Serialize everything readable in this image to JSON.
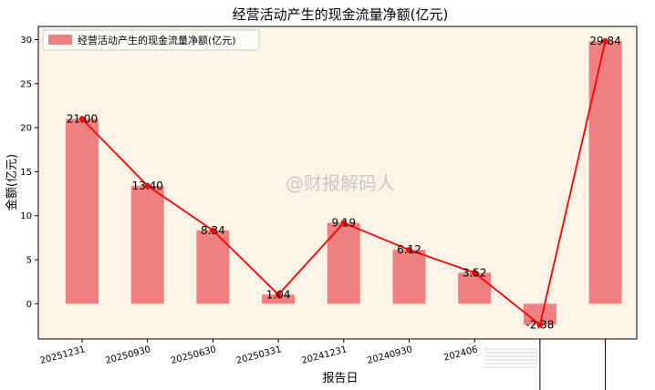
{
  "chart_data": {
    "type": "bar",
    "title": "经营活动产生的现金流量净额(亿元)",
    "xlabel": "报告日",
    "ylabel": "金额(亿元)",
    "categories": [
      "20251231",
      "20250930",
      "20250630",
      "20250331",
      "20241231",
      "20240930",
      "202406",
      "",
      ""
    ],
    "series": [
      {
        "name": "经营活动产生的现金流量净额(亿元)",
        "values": [
          21.0,
          13.4,
          8.34,
          1.04,
          9.19,
          6.12,
          3.52,
          -2.38,
          29.84
        ],
        "labels": [
          "21.00",
          "13.40",
          "8.34",
          "1.04",
          "9.19",
          "6.12",
          "3.52",
          "-2.38",
          "29.84"
        ]
      }
    ],
    "line_overlay": true,
    "ylim": [
      -4,
      31.5
    ],
    "yticks": [
      0,
      5,
      10,
      15,
      20,
      25,
      30
    ],
    "grid": false,
    "legend_position": "top-left",
    "watermark": "@财报解码人",
    "colors": {
      "bar": "#f08080",
      "line": "#ff0000",
      "plot_background": "#fdf3e6"
    }
  }
}
